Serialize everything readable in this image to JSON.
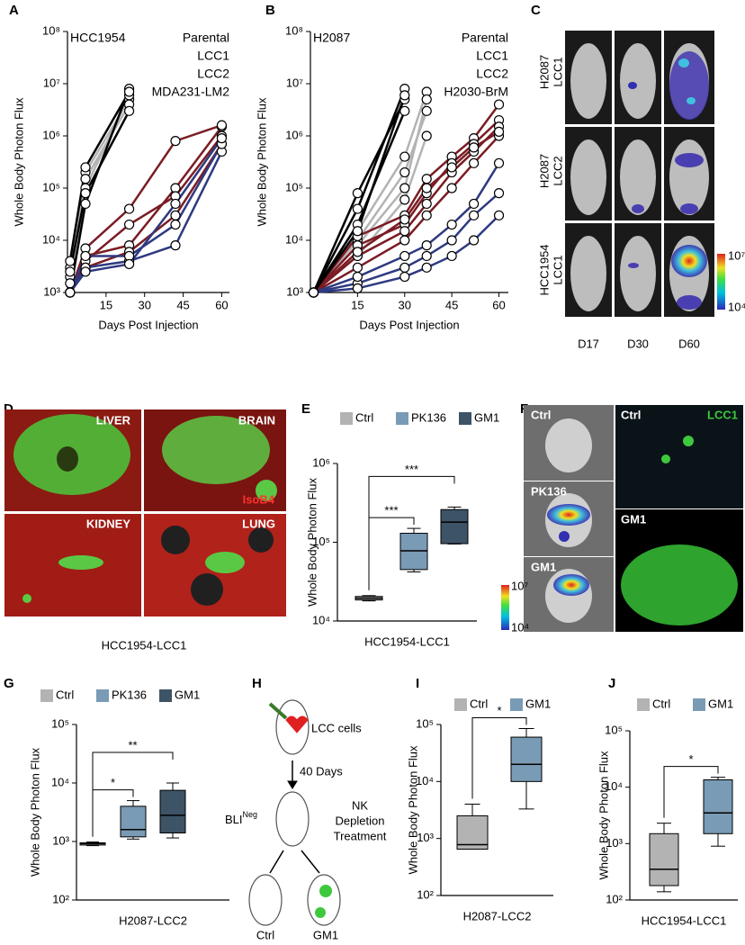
{
  "panel_letters": [
    "A",
    "B",
    "C",
    "D",
    "E",
    "F",
    "G",
    "H",
    "I",
    "J"
  ],
  "chart_data": [
    {
      "type": "line",
      "label": "HCC1954",
      "label_color": "#e8312a",
      "ylabel": "Whole Body Photon Flux",
      "xlabel": "Days Post Injection",
      "log_scale": true,
      "xlim": [
        0,
        63
      ],
      "xticks": [
        15,
        30,
        45,
        60
      ],
      "ylim": [
        1000,
        100000000
      ],
      "yticks": [
        {
          "value": 1000,
          "label": "10³"
        },
        {
          "value": 10000,
          "label": "10⁴"
        },
        {
          "value": 100000,
          "label": "10⁵"
        },
        {
          "value": 1000000,
          "label": "10⁶"
        },
        {
          "value": 10000000,
          "label": "10⁷"
        },
        {
          "value": 100000000,
          "label": "10⁸"
        }
      ],
      "series": [
        {
          "name": "Parental",
          "color": "#b3b3b3",
          "x": [
            1,
            7,
            24
          ],
          "values": [
            [
              2000,
              200000,
              5000000
            ],
            [
              3000,
              150000,
              4000000
            ],
            [
              1500,
              100000,
              6000000
            ]
          ]
        },
        {
          "name": "LCC1",
          "color": "#7b1c24",
          "x": [
            1,
            7,
            24,
            42,
            60
          ],
          "values": [
            [
              1000,
              5000,
              8000,
              100000,
              1500000
            ],
            [
              1000,
              4000,
              20000,
              70000,
              1000000
            ],
            [
              1000,
              7000,
              40000,
              800000,
              1600000
            ],
            [
              1000,
              3000,
              6000,
              30000,
              700000
            ]
          ]
        },
        {
          "name": "LCC2",
          "color": "#2e3a80",
          "x": [
            1,
            7,
            24,
            42,
            60
          ],
          "values": [
            [
              1000,
              3000,
              4000,
              8000,
              500000
            ],
            [
              1000,
              5000,
              5000,
              20000,
              700000
            ],
            [
              1000,
              2500,
              3500,
              50000,
              900000
            ]
          ]
        },
        {
          "name": "MDA231-LM2",
          "color": "#000000",
          "x": [
            1,
            7,
            24
          ],
          "values": [
            [
              1000,
              50000,
              8000000
            ],
            [
              2500,
              80000,
              3000000
            ],
            [
              4000,
              250000,
              7000000
            ]
          ]
        }
      ]
    },
    {
      "type": "line",
      "label": "H2087",
      "label_color": "#e8312a",
      "ylabel": "Whole Body Photon Flux",
      "xlabel": "Days Post Injection",
      "log_scale": true,
      "xlim": [
        0,
        63
      ],
      "xticks": [
        15,
        30,
        45,
        60
      ],
      "ylim": [
        1000,
        100000000
      ],
      "yticks": [
        {
          "value": 1000,
          "label": "10³"
        },
        {
          "value": 10000,
          "label": "10⁴"
        },
        {
          "value": 100000,
          "label": "10⁵"
        },
        {
          "value": 1000000,
          "label": "10⁶"
        },
        {
          "value": 10000000,
          "label": "10⁷"
        },
        {
          "value": 100000000,
          "label": "10⁸"
        }
      ],
      "series": [
        {
          "name": "Parental",
          "color": "#b3b3b3",
          "x": [
            1,
            15,
            30,
            37
          ],
          "values": [
            [
              1000,
              15000,
              400000,
              7000000
            ],
            [
              1000,
              8000,
              100000,
              5000000
            ],
            [
              1000,
              5000,
              60000,
              1000000
            ],
            [
              1000,
              10000,
              200000,
              3000000
            ]
          ]
        },
        {
          "name": "LCC1",
          "color": "#7b1c24",
          "x": [
            1,
            15,
            30,
            37,
            45,
            52,
            60
          ],
          "values": [
            [
              1000,
              12000,
              30000,
              150000,
              400000,
              900000,
              4000000
            ],
            [
              1000,
              8000,
              20000,
              80000,
              300000,
              700000,
              2000000
            ],
            [
              1000,
              5000,
              15000,
              50000,
              200000,
              500000,
              1500000
            ],
            [
              1000,
              3000,
              10000,
              30000,
              100000,
              300000,
              1000000
            ],
            [
              1000,
              6000,
              25000,
              100000,
              250000,
              600000,
              1200000
            ]
          ]
        },
        {
          "name": "LCC2",
          "color": "#2e3a80",
          "x": [
            1,
            15,
            30,
            37,
            45,
            52,
            60
          ],
          "values": [
            [
              1000,
              1500,
              3000,
              5000,
              10000,
              30000,
              80000
            ],
            [
              1000,
              2000,
              5000,
              8000,
              20000,
              50000,
              300000
            ],
            [
              1000,
              1200,
              2000,
              3000,
              5000,
              10000,
              30000
            ]
          ]
        },
        {
          "name": "H2030-BrM",
          "color": "#000000",
          "x": [
            1,
            15,
            30
          ],
          "values": [
            [
              1000,
              40000,
              8000000
            ],
            [
              1000,
              80000,
              5000000
            ],
            [
              1000,
              20000,
              3000000
            ],
            [
              1000,
              15000,
              6000000
            ]
          ]
        }
      ]
    },
    {
      "type": "box",
      "ylabel": "Whole Body Photon Flux",
      "xlabel": "HCC1954-LCC1",
      "log_scale": true,
      "ylim": [
        10000,
        1000000
      ],
      "yticks": [
        {
          "value": 10000,
          "label": "10⁴"
        },
        {
          "value": 100000,
          "label": "10⁵"
        },
        {
          "value": 1000000,
          "label": "10⁶"
        }
      ],
      "series": [
        {
          "name": "Ctrl",
          "color": "#b3b3b3",
          "stats": {
            "min": 18000,
            "q1": 18500,
            "median": 19500,
            "q3": 20500,
            "max": 21000
          }
        },
        {
          "name": "PK136",
          "color": "#7a9bb5",
          "stats": {
            "min": 42000,
            "q1": 45000,
            "median": 78000,
            "q3": 130000,
            "max": 150000
          }
        },
        {
          "name": "GM1",
          "color": "#3d5366",
          "stats": {
            "min": 95000,
            "q1": 96000,
            "median": 180000,
            "q3": 260000,
            "max": 280000
          }
        }
      ],
      "annotations": [
        "***",
        "***"
      ]
    },
    {
      "type": "box",
      "ylabel": "Whole Body Photon Flux",
      "xlabel": "H2087-LCC2",
      "log_scale": true,
      "ylim": [
        100,
        100000
      ],
      "yticks": [
        {
          "value": 100,
          "label": "10²"
        },
        {
          "value": 1000,
          "label": "10³"
        },
        {
          "value": 10000,
          "label": "10⁴"
        },
        {
          "value": 100000,
          "label": "10⁵"
        }
      ],
      "series": [
        {
          "name": "Ctrl",
          "color": "#b3b3b3",
          "stats": {
            "min": 850,
            "q1": 870,
            "median": 920,
            "q3": 950,
            "max": 980
          }
        },
        {
          "name": "PK136",
          "color": "#7a9bb5",
          "stats": {
            "min": 1100,
            "q1": 1200,
            "median": 1600,
            "q3": 4000,
            "max": 5000
          }
        },
        {
          "name": "GM1",
          "color": "#3d5366",
          "stats": {
            "min": 1150,
            "q1": 1400,
            "median": 2800,
            "q3": 7500,
            "max": 10000
          }
        }
      ],
      "annotations": [
        "*",
        "**"
      ]
    },
    {
      "type": "box",
      "ylabel": "Whole Body Photon Flux",
      "xlabel": "H2087-LCC2",
      "log_scale": true,
      "ylim": [
        100,
        100000
      ],
      "yticks": [
        {
          "value": 100,
          "label": "10²"
        },
        {
          "value": 1000,
          "label": "10³"
        },
        {
          "value": 10000,
          "label": "10⁴"
        },
        {
          "value": 100000,
          "label": "10⁵"
        }
      ],
      "series": [
        {
          "name": "Ctrl",
          "color": "#b3b3b3",
          "stats": {
            "min": 650,
            "q1": 650,
            "median": 780,
            "q3": 2500,
            "max": 4000
          }
        },
        {
          "name": "GM1",
          "color": "#7a9bb5",
          "stats": {
            "min": 3300,
            "q1": 10000,
            "median": 20000,
            "q3": 60000,
            "max": 85000
          }
        }
      ],
      "annotations": [
        "*"
      ]
    },
    {
      "type": "box",
      "ylabel": "Whole Body Photon Flux",
      "xlabel": "HCC1954-LCC1",
      "log_scale": true,
      "ylim": [
        100,
        100000
      ],
      "yticks": [
        {
          "value": 100,
          "label": "10²"
        },
        {
          "value": 1000,
          "label": "10³"
        },
        {
          "value": 10000,
          "label": "10⁴"
        },
        {
          "value": 100000,
          "label": "10⁵"
        }
      ],
      "series": [
        {
          "name": "Ctrl",
          "color": "#b3b3b3",
          "stats": {
            "min": 140,
            "q1": 180,
            "median": 350,
            "q3": 1500,
            "max": 2300
          }
        },
        {
          "name": "GM1",
          "color": "#7a9bb5",
          "stats": {
            "min": 900,
            "q1": 1500,
            "median": 3500,
            "q3": 13500,
            "max": 15000
          }
        }
      ],
      "annotations": [
        "*"
      ]
    }
  ],
  "panel_c": {
    "rows": [
      [
        "H2087",
        "LCC1"
      ],
      [
        "H2087",
        "LCC2"
      ],
      [
        "HCC1954",
        "LCC1"
      ]
    ],
    "columns": [
      "D17",
      "D30",
      "D60"
    ],
    "colorbar": [
      "10⁷",
      "10⁴"
    ]
  },
  "panel_d": {
    "labels": [
      "LIVER",
      "BRAIN",
      "KIDNEY",
      "LUNG"
    ],
    "stain": "IsoB4",
    "caption": "HCC1954-LCC1"
  },
  "panel_f": {
    "left": [
      "Ctrl",
      "PK136",
      "GM1"
    ],
    "colorbar": [
      "10⁷",
      "10⁴"
    ],
    "right": [
      "Ctrl",
      "GM1"
    ],
    "marker": "LCC1"
  },
  "panel_h": {
    "cells": "LCC cells",
    "days": "40 Days",
    "bli": "BLI",
    "bli_sup": "Neg",
    "treatment": [
      "NK",
      "Depletion",
      "Treatment"
    ],
    "groups": [
      "Ctrl",
      "GM1"
    ]
  }
}
